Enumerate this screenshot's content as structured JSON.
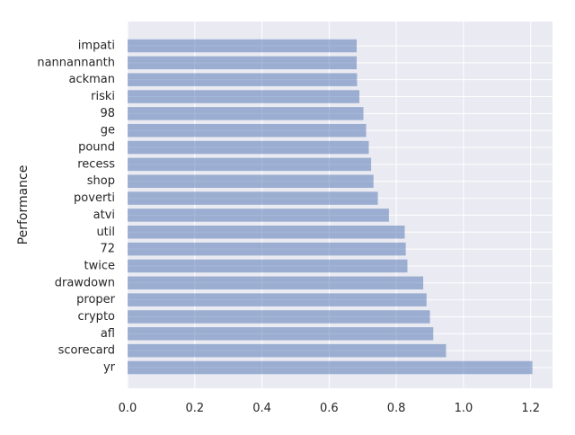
{
  "chart_data": {
    "type": "bar",
    "orientation": "horizontal",
    "title": "",
    "xlabel": "",
    "ylabel": "Performance",
    "xlim": [
      0,
      1.265
    ],
    "xticks": [
      0.0,
      0.2,
      0.4,
      0.6,
      0.8,
      1.0,
      1.2
    ],
    "xtick_labels": [
      "0.0",
      "0.2",
      "0.4",
      "0.6",
      "0.8",
      "1.0",
      "1.2"
    ],
    "grid": true,
    "colors": {
      "bar": "#4c72b0",
      "bar_opacity": 0.5,
      "plot_background": "#eaeaf2",
      "gridline": "#ffffff"
    },
    "categories": [
      "yr",
      "scorecard",
      "afl",
      "crypto",
      "proper",
      "drawdown",
      "twice",
      "72",
      "util",
      "atvi",
      "poverti",
      "shop",
      "recess",
      "pound",
      "ge",
      "98",
      "riski",
      "ackman",
      "nannannanth",
      "impati"
    ],
    "values": [
      1.205,
      0.948,
      0.91,
      0.9,
      0.89,
      0.88,
      0.833,
      0.828,
      0.825,
      0.778,
      0.745,
      0.732,
      0.725,
      0.718,
      0.71,
      0.702,
      0.69,
      0.683,
      0.682,
      0.682
    ]
  }
}
